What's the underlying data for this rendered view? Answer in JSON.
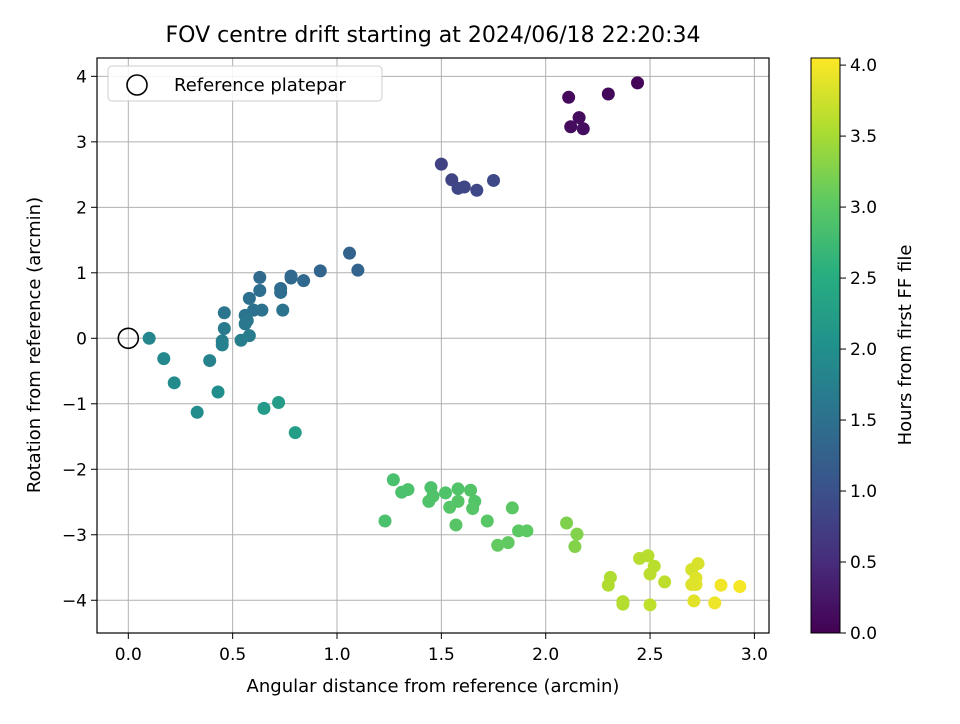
{
  "chart_data": {
    "type": "scatter",
    "title": "FOV centre drift starting at 2024/06/18 22:20:34",
    "xlabel": "Angular distance from reference (arcmin)",
    "ylabel": "Rotation from reference (arcmin)",
    "xlim": [
      -0.15,
      3.07
    ],
    "ylim": [
      -4.5,
      4.28
    ],
    "xticks": [
      0.0,
      0.5,
      1.0,
      1.5,
      2.0,
      2.5,
      3.0
    ],
    "xtick_labels": [
      "0.0",
      "0.5",
      "1.0",
      "1.5",
      "2.0",
      "2.5",
      "3.0"
    ],
    "yticks": [
      -4,
      -3,
      -2,
      -1,
      0,
      1,
      2,
      3,
      4
    ],
    "ytick_labels": [
      "−4",
      "−3",
      "−2",
      "−1",
      "0",
      "1",
      "2",
      "3",
      "4"
    ],
    "grid": true,
    "legend": {
      "position": "upper-left",
      "entries": [
        "Reference platepar"
      ]
    },
    "colorbar": {
      "label": "Hours from first FF file",
      "colormap": "viridis",
      "range": [
        0.0,
        4.05
      ],
      "ticks": [
        0.0,
        0.5,
        1.0,
        1.5,
        2.0,
        2.5,
        3.0,
        3.5,
        4.0
      ],
      "tick_labels": [
        "0.0",
        "0.5",
        "1.0",
        "1.5",
        "2.0",
        "2.5",
        "3.0",
        "3.5",
        "4.0"
      ]
    },
    "reference_point": {
      "x": 0.0,
      "y": 0.0
    },
    "series": [
      {
        "points": [
          {
            "x": 2.44,
            "y": 3.9,
            "c": 0.05
          },
          {
            "x": 2.3,
            "y": 3.73,
            "c": 0.08
          },
          {
            "x": 2.11,
            "y": 3.68,
            "c": 0.1
          },
          {
            "x": 2.16,
            "y": 3.37,
            "c": 0.12
          },
          {
            "x": 2.12,
            "y": 3.23,
            "c": 0.13
          },
          {
            "x": 2.18,
            "y": 3.2,
            "c": 0.15
          },
          {
            "x": 1.5,
            "y": 2.66,
            "c": 0.8
          },
          {
            "x": 1.55,
            "y": 2.42,
            "c": 0.82
          },
          {
            "x": 1.58,
            "y": 2.29,
            "c": 0.85
          },
          {
            "x": 1.61,
            "y": 2.31,
            "c": 0.86
          },
          {
            "x": 1.67,
            "y": 2.26,
            "c": 0.88
          },
          {
            "x": 1.75,
            "y": 2.41,
            "c": 0.9
          },
          {
            "x": 1.06,
            "y": 1.3,
            "c": 1.28
          },
          {
            "x": 1.1,
            "y": 1.04,
            "c": 1.3
          },
          {
            "x": 0.92,
            "y": 1.03,
            "c": 1.32
          },
          {
            "x": 0.78,
            "y": 0.95,
            "c": 1.35
          },
          {
            "x": 0.84,
            "y": 0.88,
            "c": 1.36
          },
          {
            "x": 0.78,
            "y": 0.92,
            "c": 1.38
          },
          {
            "x": 0.63,
            "y": 0.93,
            "c": 1.4
          },
          {
            "x": 0.73,
            "y": 0.76,
            "c": 1.42
          },
          {
            "x": 0.73,
            "y": 0.7,
            "c": 1.44
          },
          {
            "x": 0.63,
            "y": 0.73,
            "c": 1.45
          },
          {
            "x": 0.58,
            "y": 0.61,
            "c": 1.48
          },
          {
            "x": 0.6,
            "y": 0.43,
            "c": 1.5
          },
          {
            "x": 0.64,
            "y": 0.43,
            "c": 1.52
          },
          {
            "x": 0.74,
            "y": 0.43,
            "c": 1.53
          },
          {
            "x": 0.56,
            "y": 0.35,
            "c": 1.55
          },
          {
            "x": 0.46,
            "y": 0.39,
            "c": 1.58
          },
          {
            "x": 0.57,
            "y": 0.27,
            "c": 1.6
          },
          {
            "x": 0.56,
            "y": 0.22,
            "c": 1.62
          },
          {
            "x": 0.46,
            "y": 0.15,
            "c": 1.65
          },
          {
            "x": 0.58,
            "y": 0.04,
            "c": 1.68
          },
          {
            "x": 0.54,
            "y": -0.03,
            "c": 1.7
          },
          {
            "x": 0.45,
            "y": -0.04,
            "c": 1.72
          },
          {
            "x": 0.45,
            "y": -0.1,
            "c": 1.74
          },
          {
            "x": 0.39,
            "y": -0.34,
            "c": 1.8
          },
          {
            "x": 0.1,
            "y": 0.0,
            "c": 1.85
          },
          {
            "x": 0.17,
            "y": -0.31,
            "c": 1.88
          },
          {
            "x": 0.22,
            "y": -0.68,
            "c": 1.92
          },
          {
            "x": 0.33,
            "y": -1.13,
            "c": 1.95
          },
          {
            "x": 0.43,
            "y": -0.82,
            "c": 1.98
          },
          {
            "x": 0.65,
            "y": -1.07,
            "c": 2.2
          },
          {
            "x": 0.72,
            "y": -0.98,
            "c": 2.22
          },
          {
            "x": 0.8,
            "y": -1.44,
            "c": 2.25
          },
          {
            "x": 1.27,
            "y": -2.16,
            "c": 2.85
          },
          {
            "x": 1.23,
            "y": -2.79,
            "c": 2.86
          },
          {
            "x": 1.31,
            "y": -2.35,
            "c": 2.87
          },
          {
            "x": 1.34,
            "y": -2.31,
            "c": 2.88
          },
          {
            "x": 1.45,
            "y": -2.28,
            "c": 2.89
          },
          {
            "x": 1.46,
            "y": -2.41,
            "c": 2.9
          },
          {
            "x": 1.44,
            "y": -2.49,
            "c": 2.9
          },
          {
            "x": 1.52,
            "y": -2.36,
            "c": 2.91
          },
          {
            "x": 1.58,
            "y": -2.3,
            "c": 2.92
          },
          {
            "x": 1.64,
            "y": -2.32,
            "c": 2.93
          },
          {
            "x": 1.66,
            "y": -2.49,
            "c": 2.94
          },
          {
            "x": 1.58,
            "y": -2.49,
            "c": 2.95
          },
          {
            "x": 1.54,
            "y": -2.58,
            "c": 2.96
          },
          {
            "x": 1.65,
            "y": -2.6,
            "c": 2.96
          },
          {
            "x": 1.57,
            "y": -2.85,
            "c": 2.97
          },
          {
            "x": 1.72,
            "y": -2.79,
            "c": 2.98
          },
          {
            "x": 1.84,
            "y": -2.59,
            "c": 3.0
          },
          {
            "x": 1.87,
            "y": -2.94,
            "c": 3.02
          },
          {
            "x": 1.91,
            "y": -2.94,
            "c": 3.03
          },
          {
            "x": 1.82,
            "y": -3.12,
            "c": 3.05
          },
          {
            "x": 1.77,
            "y": -3.16,
            "c": 3.06
          },
          {
            "x": 2.1,
            "y": -2.82,
            "c": 3.25
          },
          {
            "x": 2.15,
            "y": -2.99,
            "c": 3.27
          },
          {
            "x": 2.14,
            "y": -3.18,
            "c": 3.28
          },
          {
            "x": 2.31,
            "y": -3.65,
            "c": 3.55
          },
          {
            "x": 2.3,
            "y": -3.77,
            "c": 3.56
          },
          {
            "x": 2.37,
            "y": -4.02,
            "c": 3.58
          },
          {
            "x": 2.37,
            "y": -4.06,
            "c": 3.59
          },
          {
            "x": 2.45,
            "y": -3.36,
            "c": 3.6
          },
          {
            "x": 2.49,
            "y": -3.32,
            "c": 3.61
          },
          {
            "x": 2.52,
            "y": -3.48,
            "c": 3.62
          },
          {
            "x": 2.5,
            "y": -3.6,
            "c": 3.63
          },
          {
            "x": 2.57,
            "y": -3.72,
            "c": 3.65
          },
          {
            "x": 2.5,
            "y": -4.07,
            "c": 3.66
          },
          {
            "x": 2.7,
            "y": -3.53,
            "c": 3.8
          },
          {
            "x": 2.73,
            "y": -3.44,
            "c": 3.82
          },
          {
            "x": 2.7,
            "y": -3.76,
            "c": 3.84
          },
          {
            "x": 2.72,
            "y": -3.66,
            "c": 3.85
          },
          {
            "x": 2.72,
            "y": -3.76,
            "c": 3.86
          },
          {
            "x": 2.71,
            "y": -4.01,
            "c": 3.88
          },
          {
            "x": 2.81,
            "y": -4.04,
            "c": 3.95
          },
          {
            "x": 2.84,
            "y": -3.77,
            "c": 3.97
          },
          {
            "x": 2.93,
            "y": -3.79,
            "c": 4.0
          }
        ]
      }
    ]
  }
}
